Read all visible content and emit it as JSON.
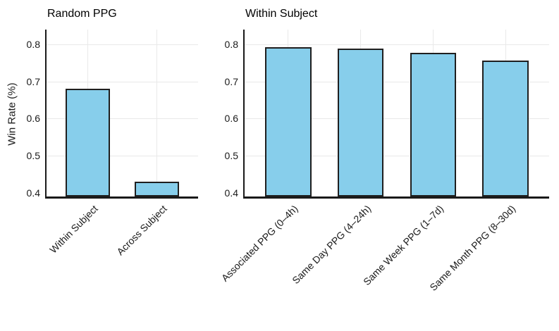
{
  "colors": {
    "background": "#ffffff",
    "bar_fill": "#87CEEB",
    "bar_stroke": "#1f1f1f",
    "grid": "#e9e9e9",
    "axis": "#1a1a1a",
    "text": "#1a1a1a"
  },
  "chart_data": [
    {
      "type": "bar",
      "title": "Random PPG",
      "xlabel": "",
      "ylabel": "Win Rate (%)",
      "categories": [
        "Within Subject",
        "Across Subject"
      ],
      "values": [
        0.68,
        0.43
      ],
      "ytick_labels": [
        "0.4",
        "0.5",
        "0.6",
        "0.7",
        "0.8"
      ],
      "ylim": [
        0.39,
        0.84
      ],
      "grid": true,
      "legend": "none",
      "bar_color": "#87CEEB"
    },
    {
      "type": "bar",
      "title": "Within Subject",
      "xlabel": "",
      "ylabel": "",
      "categories": [
        "Associated PPG (0–4h)",
        "Same Day PPG (4–24h)",
        "Same Week PPG (1–7d)",
        "Same Month PPG (8–30d)"
      ],
      "values": [
        0.793,
        0.789,
        0.778,
        0.756
      ],
      "ytick_labels": [
        "0.4",
        "0.5",
        "0.6",
        "0.7",
        "0.8"
      ],
      "ylim": [
        0.39,
        0.84
      ],
      "grid": true,
      "legend": "none",
      "bar_color": "#87CEEB"
    }
  ]
}
